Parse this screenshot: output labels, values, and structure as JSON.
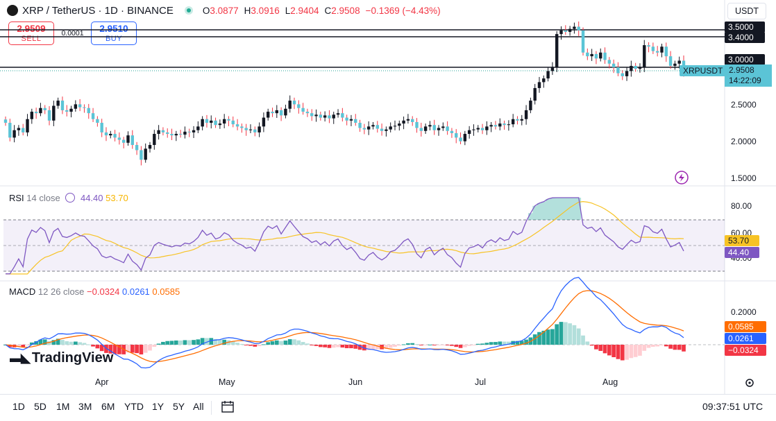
{
  "header": {
    "symbol_title": "XRP / TetherUS · 1D · BINANCE",
    "ohlc": {
      "o_label": "O",
      "o_value": "3.0877",
      "h_label": "H",
      "h_value": "3.0916",
      "l_label": "L",
      "l_value": "2.9404",
      "c_label": "C",
      "c_value": "2.9508",
      "change": "−0.1369 (−4.43%)"
    },
    "currency": "USDT"
  },
  "trade": {
    "sell_price": "2.9509",
    "sell_label": "SELL",
    "spread": "0.0001",
    "buy_price": "2.9510",
    "buy_label": "BUY"
  },
  "price_axis": {
    "labels": [
      "3.5000",
      "3.4000",
      "3.0000",
      "2.5000",
      "2.0000",
      "1.5000"
    ],
    "symbol_badge": "XRPUSDT",
    "current_price": "2.9508",
    "countdown": "14:22:09"
  },
  "rsi": {
    "name": "RSI",
    "params": "14 close",
    "value1": "44.40",
    "value2": "53.70",
    "axis": [
      "80.00",
      "60.00",
      "40.00"
    ],
    "badge_ma": "53.70",
    "badge_rsi": "44.40"
  },
  "macd": {
    "name": "MACD",
    "params": "12 26 close",
    "hist": "−0.0324",
    "macd": "0.0261",
    "signal": "0.0585",
    "axis": [
      "0.2000"
    ],
    "badge_signal": "0.0585",
    "badge_macd": "0.0261",
    "badge_hist": "−0.0324"
  },
  "time_axis": [
    "Apr",
    "May",
    "Jun",
    "Jul",
    "Aug"
  ],
  "logo_text": "TradingView",
  "bottom_bar": {
    "ranges": [
      "1D",
      "5D",
      "1M",
      "3M",
      "6M",
      "YTD",
      "1Y",
      "5Y",
      "All"
    ],
    "clock": "09:37:51 UTC"
  },
  "colors": {
    "up": "#26a69a",
    "down": "#131722",
    "up_light": "#5bc4d6",
    "rsi_line": "#7e57c2",
    "ma_line": "#f7c325",
    "macd_line": "#2962ff",
    "signal_line": "#ff6d00",
    "negative": "#f23645"
  },
  "chart_data": {
    "type": "candlestick",
    "closes": [
      2.25,
      2.05,
      2.15,
      2.18,
      2.12,
      2.3,
      2.4,
      2.38,
      2.45,
      2.42,
      2.28,
      2.48,
      2.55,
      2.42,
      2.4,
      2.44,
      2.5,
      2.46,
      2.45,
      2.38,
      2.3,
      2.25,
      2.12,
      2.08,
      2.1,
      2.05,
      2.02,
      1.98,
      2.08,
      1.95,
      1.88,
      1.75,
      1.9,
      1.95,
      2.1,
      2.15,
      2.12,
      2.1,
      2.08,
      2.1,
      2.09,
      2.13,
      2.12,
      2.15,
      2.2,
      2.3,
      2.25,
      2.28,
      2.22,
      2.24,
      2.3,
      2.28,
      2.23,
      2.2,
      2.18,
      2.15,
      2.16,
      2.12,
      2.2,
      2.32,
      2.4,
      2.38,
      2.42,
      2.35,
      2.44,
      2.55,
      2.5,
      2.45,
      2.4,
      2.38,
      2.34,
      2.36,
      2.32,
      2.35,
      2.31,
      2.36,
      2.38,
      2.32,
      2.28,
      2.3,
      2.25,
      2.18,
      2.16,
      2.2,
      2.22,
      2.17,
      2.14,
      2.16,
      2.2,
      2.21,
      2.24,
      2.28,
      2.3,
      2.26,
      2.18,
      2.14,
      2.2,
      2.22,
      2.15,
      2.18,
      2.2,
      2.14,
      2.11,
      2.05,
      2.0,
      2.1,
      2.15,
      2.16,
      2.18,
      2.15,
      2.2,
      2.22,
      2.2,
      2.24,
      2.22,
      2.23,
      2.3,
      2.28,
      2.3,
      2.42,
      2.55,
      2.72,
      2.8,
      2.85,
      2.95,
      3.0,
      3.45,
      3.5,
      3.48,
      3.52,
      3.55,
      3.5,
      3.2,
      3.15,
      3.18,
      3.12,
      3.2,
      3.1,
      3.05,
      3.0,
      2.92,
      2.88,
      2.95,
      3.02,
      2.98,
      3.0,
      3.3,
      3.28,
      3.22,
      3.2,
      3.28,
      3.15,
      3.02,
      3.05,
      3.09,
      2.95
    ],
    "price_range": [
      1.5,
      3.65
    ]
  }
}
